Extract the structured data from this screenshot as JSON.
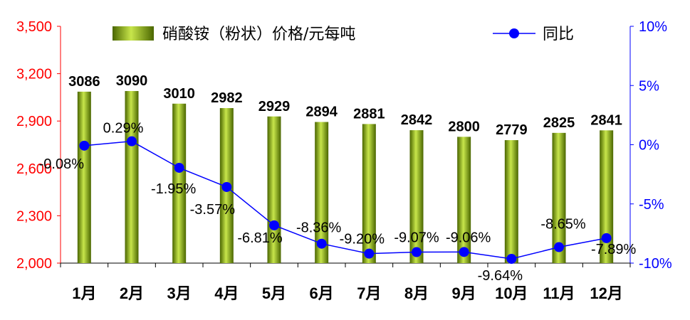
{
  "chart_data": {
    "type": "bar",
    "categories": [
      "1月",
      "2月",
      "3月",
      "4月",
      "5月",
      "6月",
      "7月",
      "8月",
      "9月",
      "10月",
      "11月",
      "12月"
    ],
    "series": [
      {
        "name": "硝酸铵（粉状）价格/元每吨",
        "type": "bar",
        "axis": "left",
        "values": [
          3086,
          3090,
          3010,
          2982,
          2929,
          2894,
          2881,
          2842,
          2800,
          2779,
          2825,
          2841
        ],
        "labels": [
          "3086",
          "3090",
          "3010",
          "2982",
          "2929",
          "2894",
          "2881",
          "2842",
          "2800",
          "2779",
          "2825",
          "2841"
        ]
      },
      {
        "name": "同比",
        "type": "line",
        "axis": "right",
        "values": [
          -0.08,
          0.29,
          -1.95,
          -3.57,
          -6.81,
          -8.36,
          -9.2,
          -9.07,
          -9.06,
          -9.64,
          -8.65,
          -7.89
        ],
        "labels": [
          "-0.08%",
          "0.29%",
          "-1.95%",
          "-3.57%",
          "-6.81%",
          "-8.36%",
          "-9.20%",
          "-9.07%",
          "-9.06%",
          "-9.64%",
          "-8.65%",
          "-7.89%"
        ]
      }
    ],
    "y_left": {
      "min": 2000,
      "max": 3500,
      "ticks": [
        2000,
        2300,
        2600,
        2900,
        3200,
        3500
      ],
      "tick_labels": [
        "2,000",
        "2,300",
        "2,600",
        "2,900",
        "3,200",
        "3,500"
      ]
    },
    "y_right": {
      "min": -10,
      "max": 10,
      "ticks": [
        -10,
        -5,
        0,
        5,
        10
      ],
      "tick_labels": [
        "-10%",
        "-5%",
        "0%",
        "5%",
        "10%"
      ]
    },
    "legend": "top",
    "grid": false,
    "colors": {
      "bar_light": "#c8e64b",
      "bar_dark": "#4a6600",
      "line": "#0000ff",
      "marker": "#0000ff",
      "left_axis": "#ff0000",
      "right_axis": "#0000ff"
    }
  }
}
